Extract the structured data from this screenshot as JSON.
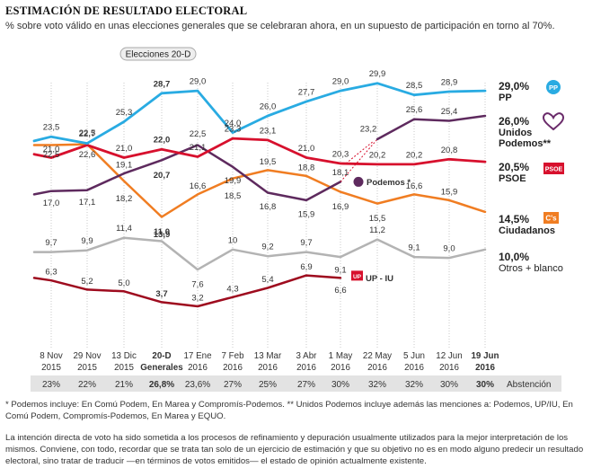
{
  "title": "ESTIMACIÓN DE RESULTADO ELECTORAL",
  "subtitle": "% sobre voto válido en unas elecciones generales que se celebraran ahora, en un supuesto de participación  en torno al 70%.",
  "footnote_1": "* Podemos incluye: En Comú Podem, En Marea y Compromís-Podemos.  ** Unidos Podemos incluye además las menciones a: Podemos, UP/IU, En Comú Podem, Compromís-Podemos, En Marea y EQUO.",
  "footnote_2": "La intención directa de voto ha sido sometida a los procesos de refinamiento y depuración usualmente utilizados para la mejor interpretación de los mismos. Conviene, con todo, recordar que se trata tan solo de un ejercicio de estimación y que su objetivo no es en modo alguno predecir un resultado electoral, sino tratar de traducir —en términos de votos emitidos— el estado de opinión actualmente existente.",
  "chart_data": {
    "type": "line",
    "marker_label": "Elecciones 20-D",
    "x_dates": [
      {
        "top": "8 Nov",
        "bottom": "2015",
        "bold": false
      },
      {
        "top": "29 Nov",
        "bottom": "2015",
        "bold": false
      },
      {
        "top": "13 Dic",
        "bottom": "2015",
        "bold": false
      },
      {
        "top": "20-D",
        "bottom": "Generales",
        "bold": true
      },
      {
        "top": "17 Ene",
        "bottom": "2016",
        "bold": false
      },
      {
        "top": "7 Feb",
        "bottom": "2016",
        "bold": false
      },
      {
        "top": "13 Mar",
        "bottom": "2016",
        "bold": false
      },
      {
        "top": "3 Abr",
        "bottom": "2016",
        "bold": false
      },
      {
        "top": "1 May",
        "bottom": "2016",
        "bold": false
      },
      {
        "top": "22 May",
        "bottom": "2016",
        "bold": false
      },
      {
        "top": "5 Jun",
        "bottom": "2016",
        "bold": false
      },
      {
        "top": "12 Jun",
        "bottom": "2016",
        "bold": false
      },
      {
        "top": "19 Jun",
        "bottom": "2016",
        "bold": true
      }
    ],
    "abstention_label": "Abstención",
    "abstention": [
      "23%",
      "22%",
      "21%",
      "26,8%",
      "23,6%",
      "27%",
      "25%",
      "27%",
      "30%",
      "32%",
      "32%",
      "30%",
      "30%"
    ],
    "series": [
      {
        "name": "PP",
        "color": "#29abe2",
        "values": [
          23.5,
          22.7,
          25.3,
          28.7,
          29.0,
          24.0,
          26.0,
          27.7,
          29.0,
          29.9,
          28.5,
          28.9,
          null
        ],
        "labels": [
          "23,5",
          "22,7",
          "25,3",
          "28,7",
          "29,0",
          "24,0",
          "26,0",
          "27,7",
          "29,0",
          "29,9",
          "28,5",
          "28,9",
          null
        ],
        "final_value": "29,0%",
        "final_name": "PP"
      },
      {
        "name": "PSOE",
        "color": "#d7102d",
        "values": [
          21.0,
          22.5,
          21.0,
          22.0,
          21.1,
          23.3,
          23.1,
          21.0,
          20.3,
          20.2,
          20.2,
          20.8,
          null
        ],
        "labels": [
          "21,0",
          "22,5",
          "21,0",
          "22,0",
          "21,1",
          "23,3",
          "23,1",
          "21,0",
          "20,3",
          "20,2",
          "20,2",
          "20,8",
          null
        ],
        "final_value": "20,5%",
        "final_name": "PSOE"
      },
      {
        "name": "Ciudadanos",
        "color": "#f07d22",
        "values": [
          22.5,
          22.6,
          18.2,
          13.9,
          16.6,
          18.5,
          19.5,
          18.8,
          16.9,
          15.5,
          16.6,
          15.9,
          null
        ],
        "labels": [
          "22,5",
          "22,6",
          "18,2",
          "13,9",
          "16,6",
          "18,5",
          "19,5",
          "18,8",
          "16,9",
          "15,5",
          "16,6",
          "15,9",
          null
        ],
        "final_value": "14,5%",
        "final_name": "Ciudadanos"
      },
      {
        "name": "Podemos *",
        "color": "#5e2a5e",
        "values": [
          17.0,
          17.1,
          19.1,
          20.7,
          22.5,
          19.9,
          16.8,
          15.9,
          18.1,
          null,
          null,
          null,
          null
        ],
        "labels": [
          "17,0",
          "17,1",
          "19,1",
          "20,7",
          "22,5",
          "19,9",
          "16,8",
          "15,9",
          "18,1",
          null,
          null,
          null,
          null
        ]
      },
      {
        "name": "Unidos Podemos**",
        "color": "#5e2a5e",
        "values": [
          null,
          null,
          null,
          null,
          null,
          null,
          null,
          null,
          null,
          23.2,
          25.6,
          25.4,
          null
        ],
        "labels": [
          null,
          null,
          null,
          null,
          null,
          null,
          null,
          null,
          null,
          "23,2",
          "25,6",
          "25,4",
          null
        ],
        "final_value": "26,0%",
        "final_name": "Unidos Podemos**"
      },
      {
        "name": "Otros + blanco",
        "color": "#b3b3b3",
        "values": [
          9.7,
          9.9,
          11.4,
          11.0,
          7.6,
          10.0,
          9.2,
          9.7,
          9.1,
          11.2,
          9.1,
          9.0,
          null
        ],
        "labels": [
          "9,7",
          "9,9",
          "11,4",
          "11,0",
          "7,6",
          "10",
          "9,2",
          "9,7",
          "9,1",
          "11,2",
          "9,1",
          "9,0",
          null
        ],
        "final_value": "10,0%",
        "final_name": "Otros + blanco"
      },
      {
        "name": "UP - IU",
        "color": "#9e0b1e",
        "values": [
          6.3,
          5.2,
          5.0,
          3.7,
          3.2,
          4.3,
          5.4,
          6.9,
          6.6,
          null,
          null,
          null,
          null
        ],
        "labels": [
          "6,3",
          "5,2",
          "5,0",
          "3,7",
          "3,2",
          "4,3",
          "5,4",
          "6,9",
          "6,6",
          null,
          null,
          null,
          null
        ]
      }
    ],
    "final_values": {
      "PP": 29.0,
      "Unidos Podemos**": 26.0,
      "PSOE": 20.5,
      "Ciudadanos": 14.5,
      "Otros + blanco": 10.0
    },
    "legend_names": {
      "Unidos Podemos**": "Unidos\nPodemos**"
    },
    "label_texts": {
      "podemos_inline": "Podemos *",
      "upiu_inline": "UP - IU"
    },
    "badge_texts": {
      "PSOE": "PSOE",
      "Ciudadanos": "C's",
      "UP - IU": "UP"
    },
    "grid": "vertical-dotted",
    "ylim": [
      2,
      31
    ]
  }
}
